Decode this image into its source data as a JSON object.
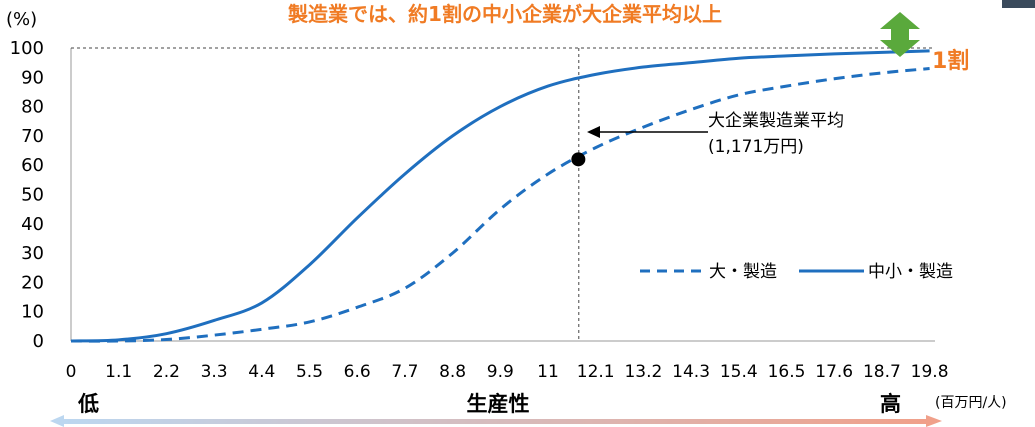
{
  "chart_data": {
    "type": "line",
    "title": "製造業では、約1割の中小企業が大企業平均以上",
    "ylabel": "(%)",
    "xunit": "(百万円/人)",
    "ylim": [
      0,
      100
    ],
    "y_ticks": [
      "0",
      "10",
      "20",
      "30",
      "40",
      "50",
      "60",
      "70",
      "80",
      "90",
      "100"
    ],
    "x_ticks": [
      "0",
      "1.1",
      "2.2",
      "3.3",
      "4.4",
      "5.5",
      "6.6",
      "7.7",
      "8.8",
      "9.9",
      "11",
      "12.1",
      "13.2",
      "14.3",
      "15.4",
      "16.5",
      "17.6",
      "18.7",
      "19.8"
    ],
    "grid": false,
    "legend_position": "bottom-right",
    "series": [
      {
        "name": "大・製造",
        "style": "dashed",
        "color": "#1f6fbf",
        "x": [
          0,
          1.1,
          2.2,
          3.3,
          4.4,
          5.5,
          6.6,
          7.7,
          8.8,
          9.9,
          11,
          12.1,
          13.2,
          14.3,
          15.4,
          16.5,
          17.6,
          18.7,
          19.8
        ],
        "y": [
          0,
          0,
          0.5,
          2,
          4,
          6.5,
          11.5,
          18,
          30,
          45,
          57,
          66,
          73,
          79,
          84,
          87,
          89.5,
          91.5,
          93
        ]
      },
      {
        "name": "中小・製造",
        "style": "solid",
        "color": "#1f6fbf",
        "x": [
          0,
          1.1,
          2.2,
          3.3,
          4.4,
          5.5,
          6.6,
          7.7,
          8.8,
          9.9,
          11,
          12.1,
          13.2,
          14.3,
          15.4,
          16.5,
          17.6,
          18.7,
          19.8
        ],
        "y": [
          0,
          0.4,
          2.5,
          7,
          13,
          26,
          42,
          57,
          70,
          80,
          87,
          91,
          93.5,
          95,
          96.5,
          97.3,
          98,
          98.5,
          99
        ]
      }
    ],
    "marker_point": {
      "x": 11.7,
      "y": 62
    },
    "reference_x": 11.71,
    "annotations": {
      "avg_line1": "大企業製造業平均",
      "avg_line2": "(1,171万円)",
      "ten_percent": "1割"
    },
    "axis_words": {
      "low": "低",
      "center": "生産性",
      "high": "高"
    },
    "colors": {
      "title": "#f07b24",
      "accent_orange": "#f07b24",
      "line": "#1f6fbf",
      "arrow_green": "#5aa93c",
      "gradient_left": "#bcd7f0",
      "gradient_right": "#f0a08a"
    }
  }
}
